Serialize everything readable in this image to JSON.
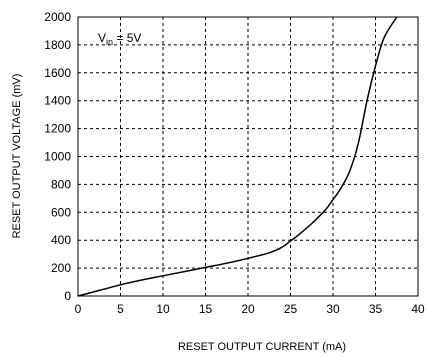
{
  "chart_data": {
    "type": "line",
    "title": "",
    "xlabel": "RESET OUTPUT CURRENT (mA)",
    "ylabel": "RESET OUTPUT VOLTAGE (mV)",
    "xlim": [
      0,
      40
    ],
    "ylim": [
      0,
      2000
    ],
    "xticks": [
      0,
      5,
      10,
      15,
      20,
      25,
      30,
      35,
      40
    ],
    "yticks": [
      0,
      200,
      400,
      600,
      800,
      1000,
      1200,
      1400,
      1600,
      1800,
      2000
    ],
    "xtick_labels": [
      "0",
      "5",
      "10",
      "15",
      "20",
      "25",
      "30",
      "35",
      "40"
    ],
    "ytick_labels": [
      "0",
      "200",
      "400",
      "600",
      "800",
      "1000",
      "1200",
      "1400",
      "1600",
      "1800",
      "2000"
    ],
    "grid": true,
    "grid_style": "dashed",
    "annotation": {
      "main": "V",
      "sub": "in",
      "rest": " = 5V"
    },
    "series": [
      {
        "color": "#000000",
        "x": [
          0,
          2.5,
          5,
          7.5,
          10,
          12.5,
          15,
          17.5,
          20,
          22.5,
          24,
          25,
          26,
          27.5,
          29,
          30,
          31,
          32,
          33,
          34,
          35,
          36,
          37.5
        ],
        "y": [
          0,
          40,
          80,
          115,
          145,
          175,
          205,
          235,
          270,
          310,
          350,
          395,
          440,
          520,
          610,
          690,
          780,
          900,
          1100,
          1400,
          1650,
          1850,
          2000
        ]
      }
    ]
  }
}
